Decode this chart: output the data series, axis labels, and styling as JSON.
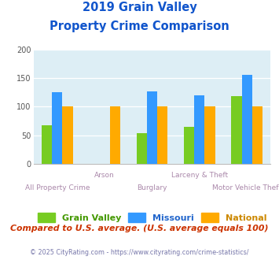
{
  "title_line1": "2019 Grain Valley",
  "title_line2": "Property Crime Comparison",
  "categories": [
    "All Property Crime",
    "Arson",
    "Burglary",
    "Larceny & Theft",
    "Motor Vehicle Theft"
  ],
  "series_names": [
    "Grain Valley",
    "Missouri",
    "National"
  ],
  "series_values": {
    "Grain Valley": [
      68,
      0,
      53,
      65,
      118
    ],
    "Missouri": [
      125,
      0,
      126,
      120,
      155
    ],
    "National": [
      100,
      100,
      100,
      100,
      100
    ]
  },
  "colors": {
    "Grain Valley": "#77cc22",
    "Missouri": "#3399ff",
    "National": "#ffaa00"
  },
  "ylim": [
    0,
    200
  ],
  "yticks": [
    0,
    50,
    100,
    150,
    200
  ],
  "bg_color": "#ddeef5",
  "title_color": "#1155cc",
  "label_color": "#aa88aa",
  "footer_text": "Compared to U.S. average. (U.S. average equals 100)",
  "footer_color": "#cc3300",
  "copyright_text": "© 2025 CityRating.com - https://www.cityrating.com/crime-statistics/",
  "copyright_color": "#7777aa",
  "bar_width": 0.22,
  "legend_text_colors": {
    "Grain Valley": "#449900",
    "Missouri": "#2266cc",
    "National": "#cc8800"
  },
  "x_label_top": [
    "",
    "Arson",
    "",
    "Larceny & Theft",
    ""
  ],
  "x_label_bot": [
    "All Property Crime",
    "",
    "Burglary",
    "",
    "Motor Vehicle Theft"
  ]
}
